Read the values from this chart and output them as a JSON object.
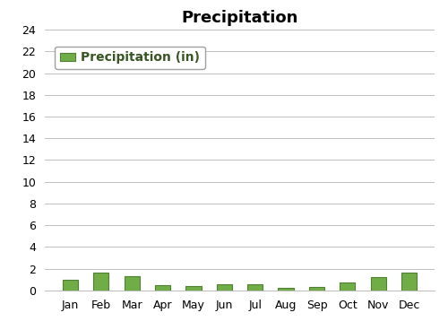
{
  "title": "Precipitation",
  "categories": [
    "Jan",
    "Feb",
    "Mar",
    "Apr",
    "May",
    "Jun",
    "Jul",
    "Aug",
    "Sep",
    "Oct",
    "Nov",
    "Dec"
  ],
  "values": [
    1.0,
    1.6,
    1.3,
    0.5,
    0.4,
    0.6,
    0.6,
    0.2,
    0.3,
    0.7,
    1.2,
    1.6
  ],
  "bar_color": "#70AD47",
  "bar_edge_color": "#507E32",
  "legend_label": "Precipitation (in)",
  "legend_text_color": "#375623",
  "ylim": [
    0,
    24
  ],
  "yticks": [
    0,
    2,
    4,
    6,
    8,
    10,
    12,
    14,
    16,
    18,
    20,
    22,
    24
  ],
  "grid_color": "#C0C0C0",
  "background_color": "#FFFFFF",
  "title_fontsize": 13,
  "tick_fontsize": 9,
  "legend_fontsize": 10,
  "bar_width": 0.5
}
